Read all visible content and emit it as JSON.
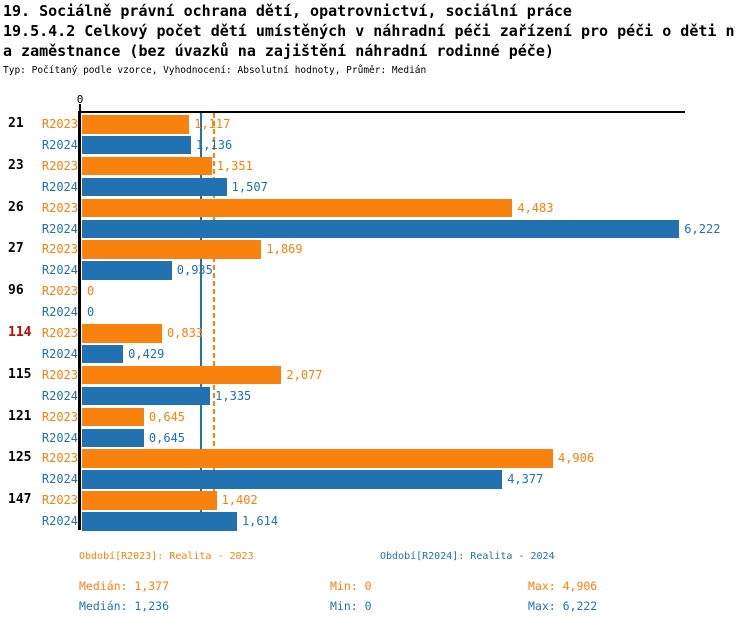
{
  "header": {
    "title_line1": "19. Sociálně právní ochrana dětí, opatrovnictví, sociální práce",
    "title_line2": "19.5.4.2 Celkový počet dětí umístěných v náhradní péči zařízení pro péči o děti n",
    "title_line3": "a zaměstnance (bez úvazků na zajištění náhradní rodinné péče)",
    "subtitle": "Typ: Počítaný podle vzorce, Vyhodnocení: Absolutní hodnoty, Průměr: Medián"
  },
  "colors": {
    "r2023": "#f8820d",
    "r2024": "#2272b2",
    "highlight": "#d40000",
    "axis": "#000000"
  },
  "chart_data": {
    "type": "bar",
    "orientation": "horizontal",
    "title": "",
    "xlabel": "",
    "ylabel": "",
    "x_axis": {
      "zero_label": "0",
      "min": 0,
      "max": 6.3,
      "grid": false
    },
    "legend_position": "bottom",
    "categories": [
      "21",
      "23",
      "26",
      "27",
      "96",
      "114",
      "115",
      "121",
      "125",
      "147"
    ],
    "highlighted_category": "114",
    "series": [
      {
        "name": "R2023",
        "color": "#f8820d",
        "line_style": "dashed",
        "values": [
          1.117,
          1.351,
          4.483,
          1.869,
          0,
          0.833,
          2.077,
          0.645,
          4.906,
          1.402
        ],
        "labels": [
          "1,117",
          "1,351",
          "4,483",
          "1,869",
          "0",
          "0,833",
          "2,077",
          "0,645",
          "4,906",
          "1,402"
        ],
        "median": 1.377,
        "legend_label": "Období[R2023]: Realita - 2023",
        "median_label": "Medián: 1,377",
        "min_label": "Min: 0",
        "max_label": "Max: 4,906"
      },
      {
        "name": "R2024",
        "color": "#2272b2",
        "line_style": "solid",
        "values": [
          1.136,
          1.507,
          6.222,
          0.935,
          0,
          0.429,
          1.335,
          0.645,
          4.377,
          1.614
        ],
        "labels": [
          "1,136",
          "1,507",
          "6,222",
          "0,935",
          "0",
          "0,429",
          "1,335",
          "0,645",
          "4,377",
          "1,614"
        ],
        "median": 1.236,
        "legend_label": "Období[R2024]: Realita - 2024",
        "median_label": "Medián: 1,236",
        "min_label": "Min: 0",
        "max_label": "Max: 6,222"
      }
    ]
  }
}
